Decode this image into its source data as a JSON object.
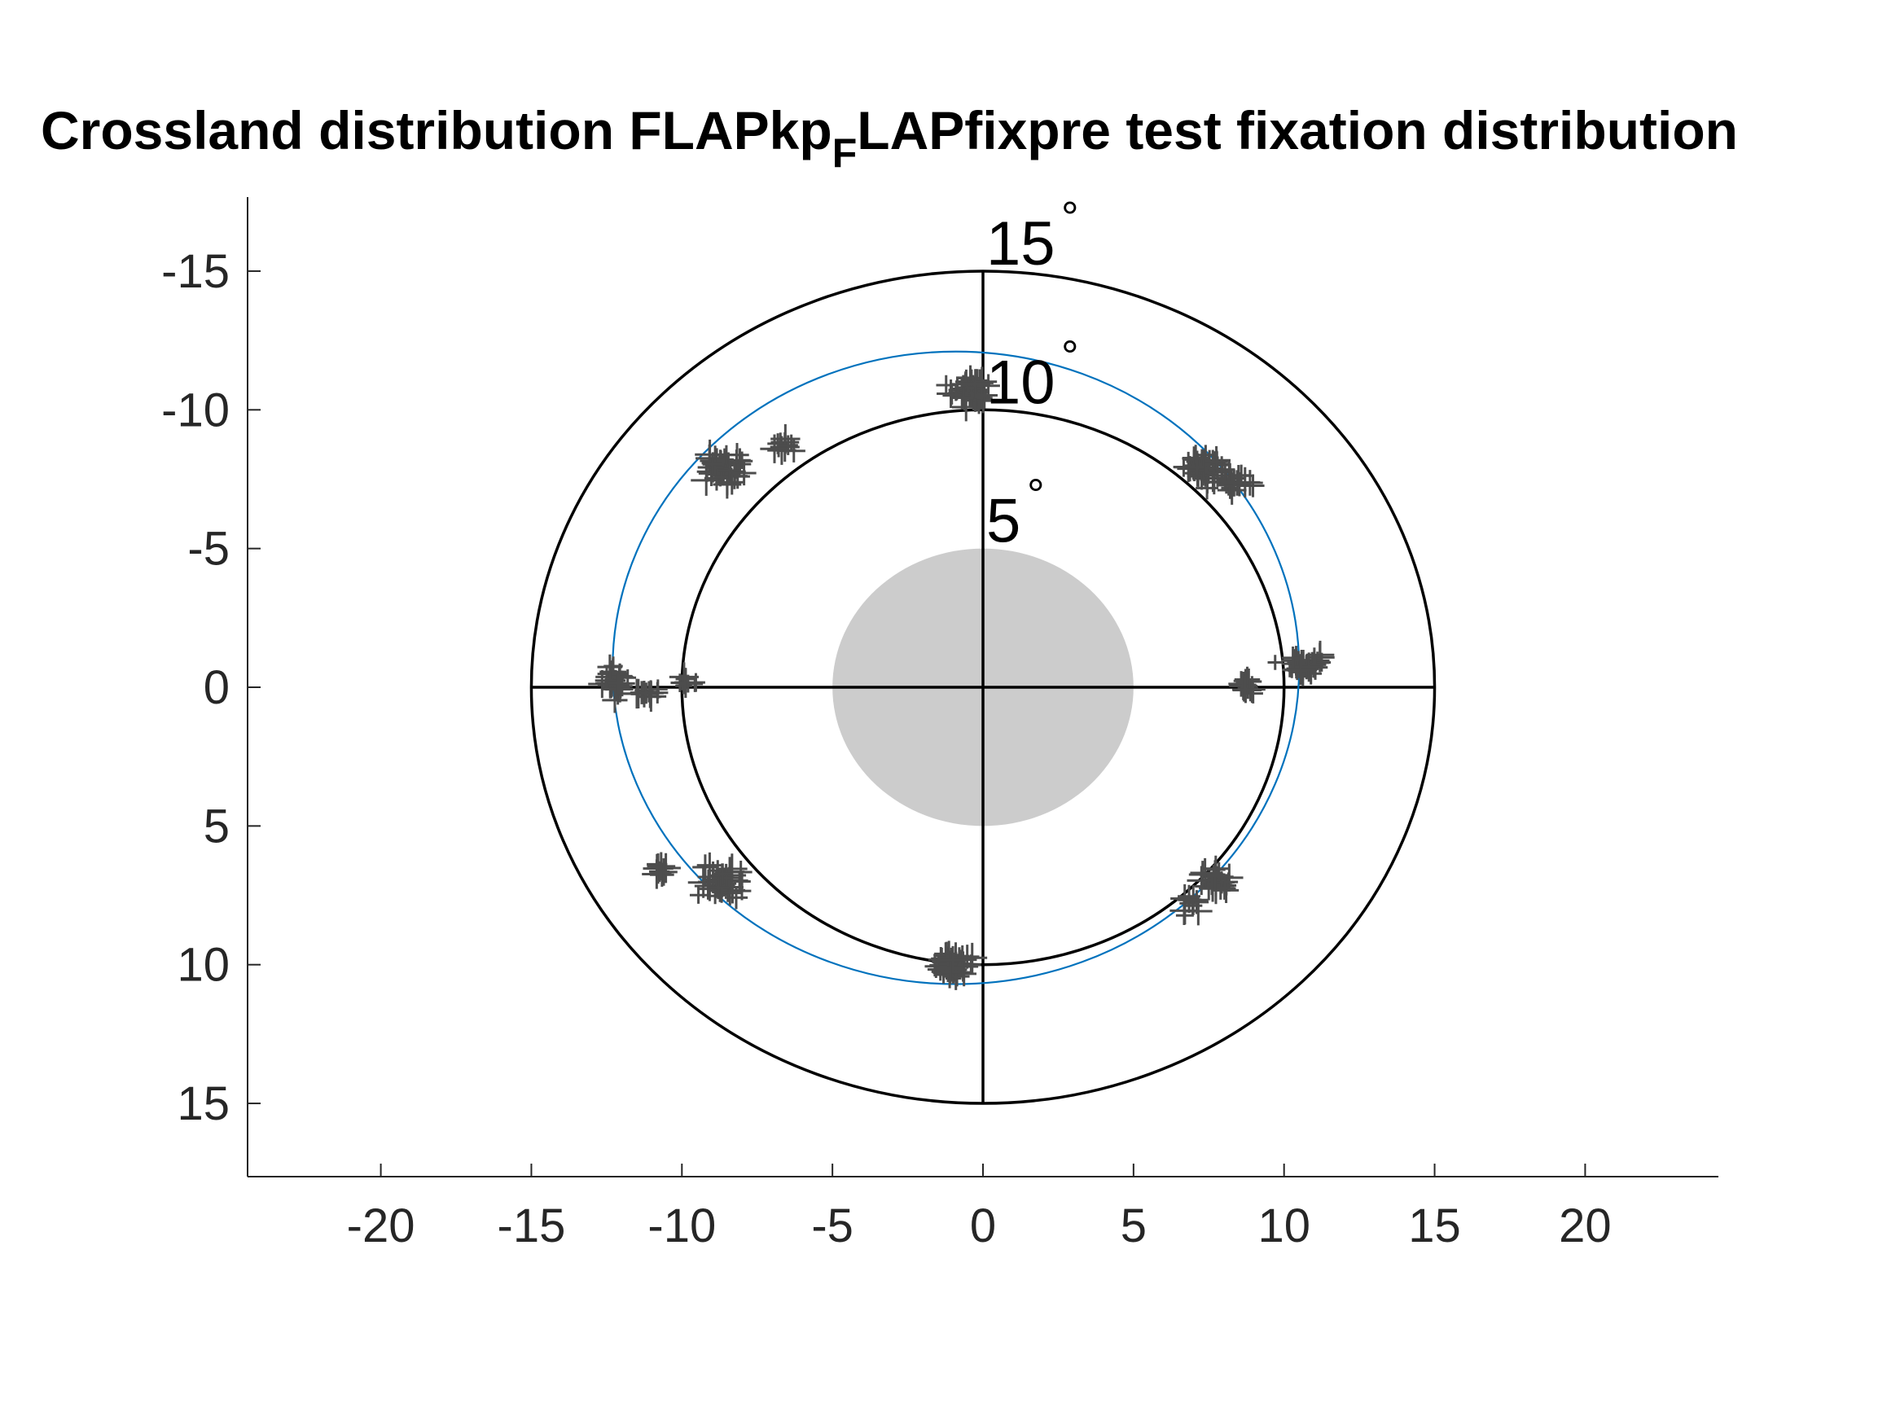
{
  "chart_data": {
    "type": "scatter",
    "title": {
      "prefix": "Crossland distribution FLAPkp",
      "subscript": "F",
      "suffix": "LAPfixpre test fixation distribution"
    },
    "xlabel": "",
    "ylabel": "",
    "xlim": [
      -24.5,
      24.5
    ],
    "ylim": [
      17.5,
      -17.5
    ],
    "y_axis_reversed": true,
    "xticks": [
      -20,
      -15,
      -10,
      -5,
      0,
      5,
      10,
      15,
      20
    ],
    "xtick_labels": [
      "-20",
      "-15",
      "-10",
      "-5",
      "0",
      "5",
      "10",
      "15",
      "20"
    ],
    "yticks": [
      -15,
      -10,
      -5,
      0,
      5,
      10,
      15
    ],
    "ytick_labels": [
      "-15",
      "-10",
      "-5",
      "0",
      "5",
      "10",
      "15"
    ],
    "grid": false,
    "legend": "none",
    "eccentricity_rings": [
      {
        "radius": 5,
        "label": "5",
        "fill": "#cccccc"
      },
      {
        "radius": 10,
        "label": "10",
        "stroke": "#000000"
      },
      {
        "radius": 15,
        "label": "15",
        "stroke": "#000000"
      }
    ],
    "degree_symbol": "°",
    "crosshair": {
      "x_extent": [
        -15,
        15
      ],
      "y_extent": [
        -15,
        15
      ],
      "color": "#000000"
    },
    "fitted_circle": {
      "cx": -0.9,
      "cy": -0.7,
      "radius": 11.4,
      "color": "#0072bd"
    },
    "series": [
      {
        "marker": "+",
        "color": "#4d4d4d",
        "clusters": [
          {
            "cx": -0.5,
            "cy": -10.6,
            "sx": 0.6,
            "sy": 0.5,
            "n": 45
          },
          {
            "cx": 7.3,
            "cy": -8.0,
            "sx": 0.6,
            "sy": 0.4,
            "n": 40
          },
          {
            "cx": 8.3,
            "cy": -7.4,
            "sx": 0.5,
            "sy": 0.4,
            "n": 25
          },
          {
            "cx": 10.8,
            "cy": -0.8,
            "sx": 0.7,
            "sy": 0.3,
            "n": 35
          },
          {
            "cx": 8.8,
            "cy": -0.1,
            "sx": 0.3,
            "sy": 0.3,
            "n": 12
          },
          {
            "cx": 7.8,
            "cy": 7.0,
            "sx": 0.5,
            "sy": 0.4,
            "n": 28
          },
          {
            "cx": 6.9,
            "cy": 7.8,
            "sx": 0.3,
            "sy": 0.4,
            "n": 10
          },
          {
            "cx": -0.9,
            "cy": 9.9,
            "sx": 0.6,
            "sy": 0.4,
            "n": 50
          },
          {
            "cx": -8.8,
            "cy": 7.0,
            "sx": 0.7,
            "sy": 0.5,
            "n": 40
          },
          {
            "cx": -10.7,
            "cy": 6.5,
            "sx": 0.3,
            "sy": 0.3,
            "n": 8
          },
          {
            "cx": -12.3,
            "cy": -0.2,
            "sx": 0.4,
            "sy": 0.5,
            "n": 30
          },
          {
            "cx": -11.1,
            "cy": 0.2,
            "sx": 0.4,
            "sy": 0.2,
            "n": 12
          },
          {
            "cx": -9.8,
            "cy": -0.2,
            "sx": 0.3,
            "sy": 0.2,
            "n": 10
          },
          {
            "cx": -8.6,
            "cy": -7.9,
            "sx": 0.6,
            "sy": 0.5,
            "n": 40
          },
          {
            "cx": -6.6,
            "cy": -8.7,
            "sx": 0.3,
            "sy": 0.3,
            "n": 10
          }
        ]
      }
    ]
  }
}
